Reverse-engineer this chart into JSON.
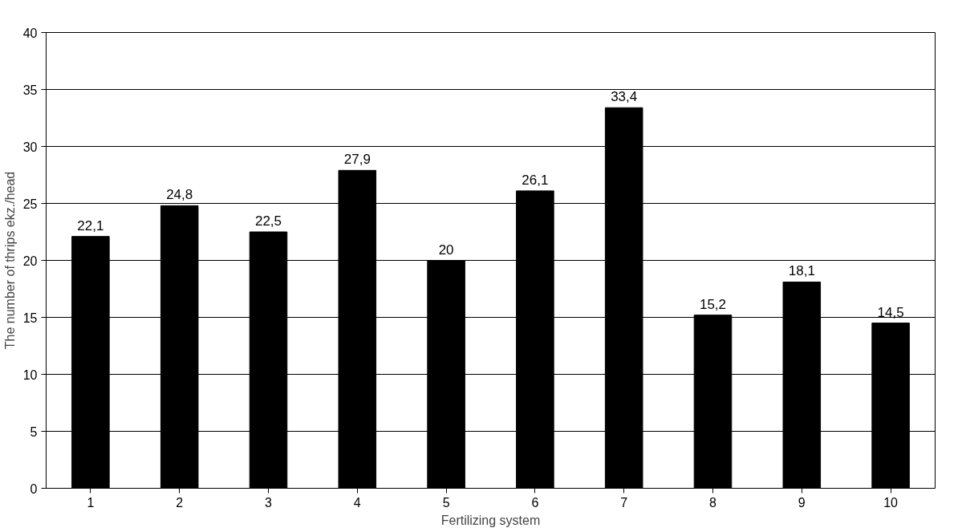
{
  "chart_data": {
    "type": "bar",
    "xlabel": "Fertilizing system",
    "ylabel": "The number of thrips ekz./head",
    "categories": [
      "1",
      "2",
      "3",
      "4",
      "5",
      "6",
      "7",
      "8",
      "9",
      "10"
    ],
    "values": [
      22.1,
      24.8,
      22.5,
      27.9,
      20,
      26.1,
      33.4,
      15.2,
      18.1,
      14.5
    ],
    "value_labels": [
      "22,1",
      "24,8",
      "22,5",
      "27,9",
      "20",
      "26,1",
      "33,4",
      "15,2",
      "18,1",
      "14,5"
    ],
    "color": "#000000",
    "ylim": [
      0,
      40
    ],
    "yticks": [
      0,
      5,
      10,
      15,
      20,
      25,
      30,
      35,
      40
    ],
    "grid": "y"
  }
}
